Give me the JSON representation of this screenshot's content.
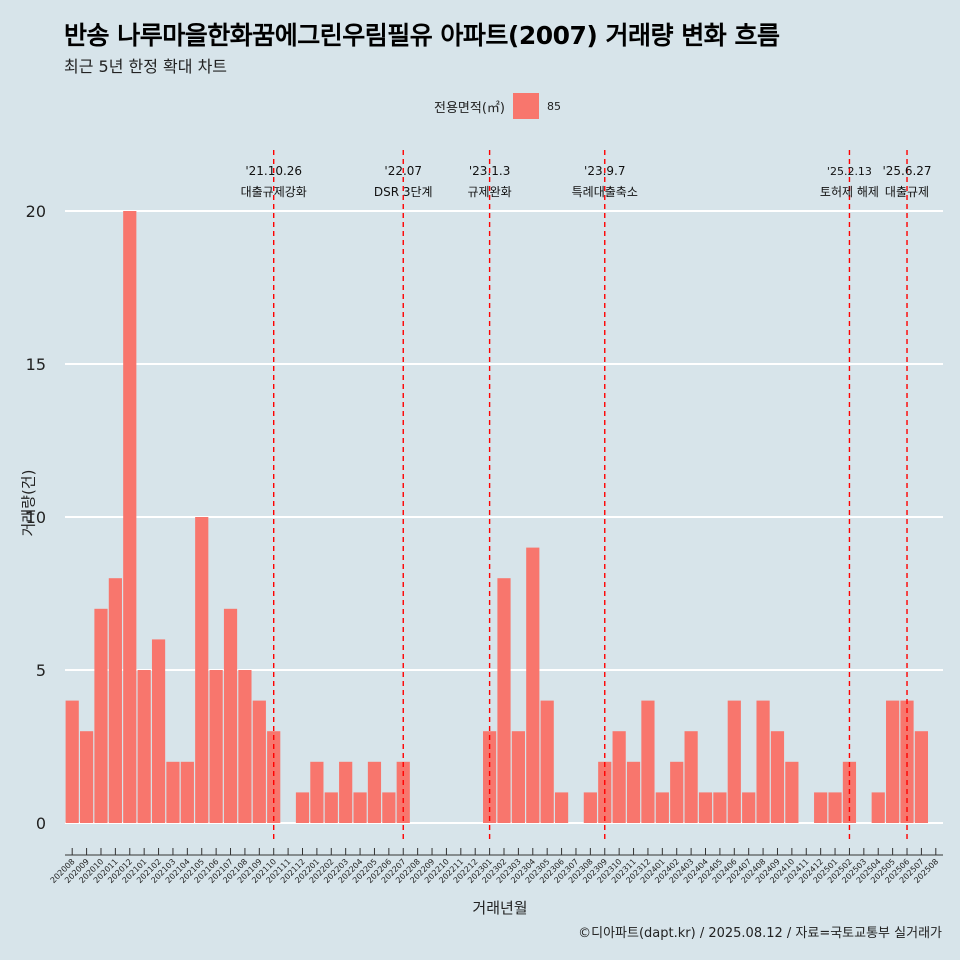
{
  "title": "반송 나루마을한화꿈에그린우림필유 아파트(2007) 거래량 변화 흐름",
  "subtitle": "최근 5년 한정 확대 차트",
  "legend": {
    "title": "전용면적(㎡)",
    "label": "85",
    "color": "#f8766d"
  },
  "caption": "©디아파트(dapt.kr) / 2025.08.12 / 자료=국토교통부 실거래가",
  "colors": {
    "bar": "#f8766d",
    "vline": "#ff0000",
    "background": "#d7e4ea",
    "grid": "#ffffff"
  },
  "chart_data": {
    "type": "bar",
    "xlabel": "거래년월",
    "ylabel": "거래량(건)",
    "ylim": [
      0,
      20
    ],
    "yticks": [
      0,
      5,
      10,
      15,
      20
    ],
    "grid": "horizontal",
    "legend_position": "top",
    "categories": [
      "202008",
      "202009",
      "202010",
      "202011",
      "202012",
      "202101",
      "202102",
      "202103",
      "202104",
      "202105",
      "202106",
      "202107",
      "202108",
      "202109",
      "202110",
      "202111",
      "202112",
      "202201",
      "202202",
      "202203",
      "202204",
      "202205",
      "202206",
      "202207",
      "202208",
      "202209",
      "202210",
      "202211",
      "202212",
      "202301",
      "202302",
      "202303",
      "202304",
      "202305",
      "202306",
      "202307",
      "202308",
      "202309",
      "202310",
      "202311",
      "202312",
      "202401",
      "202402",
      "202403",
      "202404",
      "202405",
      "202406",
      "202407",
      "202408",
      "202409",
      "202410",
      "202411",
      "202412",
      "202501",
      "202502",
      "202503",
      "202504",
      "202505",
      "202506",
      "202507",
      "202508"
    ],
    "series": [
      {
        "name": "85",
        "values": [
          4,
          3,
          7,
          8,
          20,
          5,
          6,
          2,
          2,
          10,
          5,
          7,
          5,
          4,
          3,
          0,
          1,
          2,
          1,
          2,
          1,
          2,
          1,
          2,
          0,
          0,
          0,
          0,
          0,
          3,
          8,
          3,
          9,
          4,
          1,
          0,
          1,
          2,
          3,
          2,
          4,
          1,
          2,
          3,
          1,
          1,
          4,
          1,
          4,
          3,
          2,
          0,
          1,
          1,
          2,
          0,
          1,
          4,
          4,
          3,
          0
        ]
      }
    ],
    "annotations": [
      {
        "x": "202110",
        "date": "'21.10.26",
        "label": "대출규제강화"
      },
      {
        "x": "202207",
        "date": "'22.07",
        "label": "DSR 3단계"
      },
      {
        "x": "202301",
        "date": "'23.1.3",
        "label": "규제완화"
      },
      {
        "x": "202309",
        "date": "'23.9.7",
        "label": "특례대출축소"
      },
      {
        "x": "202502",
        "date": "'25.2.13",
        "label": "토허제 해제"
      },
      {
        "x": "202506",
        "date": "'25.6.27",
        "label": "대출규제"
      }
    ]
  }
}
